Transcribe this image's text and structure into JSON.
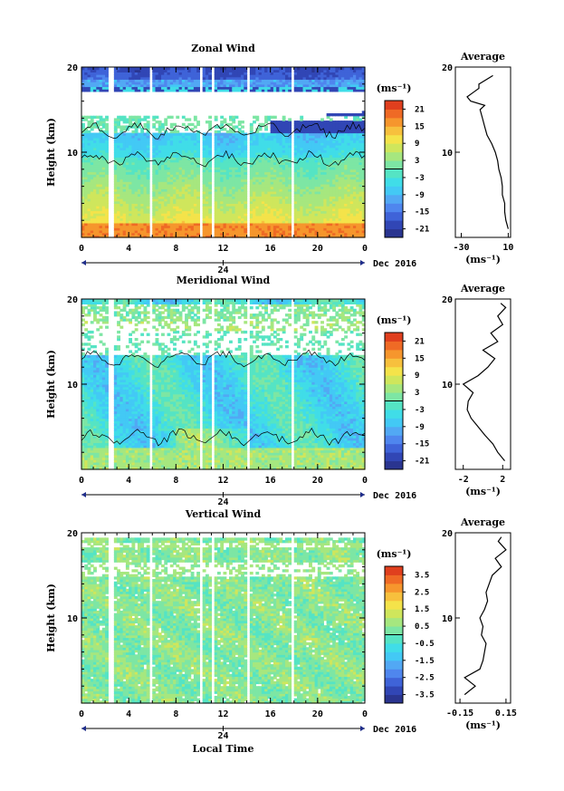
{
  "chart_data": [
    {
      "type": "heatmap",
      "title": "Zonal Wind",
      "ylabel": "Height (km)",
      "xlabel": "",
      "x_ticks": [
        "0",
        "4",
        "8",
        "12",
        "16",
        "20",
        "0"
      ],
      "y_ticks": [
        "10",
        "20"
      ],
      "xlim": [
        0,
        24
      ],
      "ylim": [
        0,
        20
      ],
      "date_label": "24",
      "month_label": "Dec 2016",
      "colorbar": {
        "unit": "(ms⁻¹)",
        "ticks": [
          "21",
          "15",
          "9",
          "3",
          "-3",
          "-9",
          "-15",
          "-21"
        ],
        "min": -24,
        "max": 24
      },
      "average": {
        "title": "Average",
        "x_ticks": [
          "-30",
          "10"
        ],
        "xlim": [
          -35,
          12
        ],
        "xlabel": "(ms⁻¹)",
        "heights": [
          1,
          2,
          3,
          4,
          5,
          6,
          7,
          8,
          9,
          10,
          11,
          12,
          13,
          14,
          15,
          15.5,
          16,
          16.5,
          17,
          17.5,
          18,
          19
        ],
        "values": [
          10,
          8,
          7,
          7,
          5,
          5,
          4,
          2,
          1,
          -1,
          -4,
          -8,
          -10,
          -12,
          -14,
          -10,
          -22,
          -25,
          -20,
          -15,
          -15,
          -3
        ]
      }
    },
    {
      "type": "heatmap",
      "title": "Meridional Wind",
      "ylabel": "Height (km)",
      "xlabel": "",
      "x_ticks": [
        "0",
        "4",
        "8",
        "12",
        "16",
        "20",
        "0"
      ],
      "y_ticks": [
        "10",
        "20"
      ],
      "xlim": [
        0,
        24
      ],
      "ylim": [
        0,
        20
      ],
      "date_label": "24",
      "month_label": "Dec 2016",
      "colorbar": {
        "unit": "(ms⁻¹)",
        "ticks": [
          "21",
          "15",
          "9",
          "3",
          "-3",
          "-9",
          "-15",
          "-21"
        ],
        "min": -24,
        "max": 24
      },
      "average": {
        "title": "Average",
        "x_ticks": [
          "-2",
          "2"
        ],
        "xlim": [
          -2.8,
          2.8
        ],
        "xlabel": "(ms⁻¹)",
        "heights": [
          1,
          2,
          3,
          4,
          5,
          6,
          7,
          8,
          9,
          10,
          11,
          12,
          13,
          14,
          15,
          16,
          17,
          18,
          19,
          19.5
        ],
        "values": [
          2.2,
          1.5,
          1.0,
          0.2,
          -0.5,
          -1.2,
          -1.6,
          -1.5,
          -1.0,
          -2.0,
          -0.5,
          0.5,
          1.2,
          0.0,
          1.5,
          0.8,
          2.0,
          1.5,
          2.3,
          1.8
        ]
      }
    },
    {
      "type": "heatmap",
      "title": "Vertical Wind",
      "ylabel": "Height (km)",
      "xlabel": "Local Time",
      "x_ticks": [
        "0",
        "4",
        "8",
        "12",
        "16",
        "20",
        "0"
      ],
      "y_ticks": [
        "10",
        "20"
      ],
      "xlim": [
        0,
        24
      ],
      "ylim": [
        0,
        20
      ],
      "date_label": "24",
      "month_label": "Dec 2016",
      "colorbar": {
        "unit": "(ms⁻¹)",
        "ticks": [
          "3.5",
          "2.5",
          "1.5",
          "0.5",
          "-0.5",
          "-1.5",
          "-2.5",
          "-3.5"
        ],
        "min": -4,
        "max": 4
      },
      "average": {
        "title": "Average",
        "x_ticks": [
          "-0.15",
          "0.15"
        ],
        "xlim": [
          -0.18,
          0.18
        ],
        "xlabel": "(ms⁻¹)",
        "heights": [
          1,
          2,
          3,
          4,
          5,
          6,
          7,
          8,
          9,
          10,
          11,
          12,
          13,
          14,
          15,
          16,
          17,
          18,
          19,
          19.5
        ],
        "values": [
          -0.12,
          -0.05,
          -0.12,
          -0.02,
          0.0,
          0.01,
          0.02,
          -0.01,
          0.0,
          -0.02,
          0.01,
          0.03,
          0.02,
          0.04,
          0.06,
          0.12,
          0.08,
          0.15,
          0.1,
          0.12
        ]
      }
    }
  ]
}
